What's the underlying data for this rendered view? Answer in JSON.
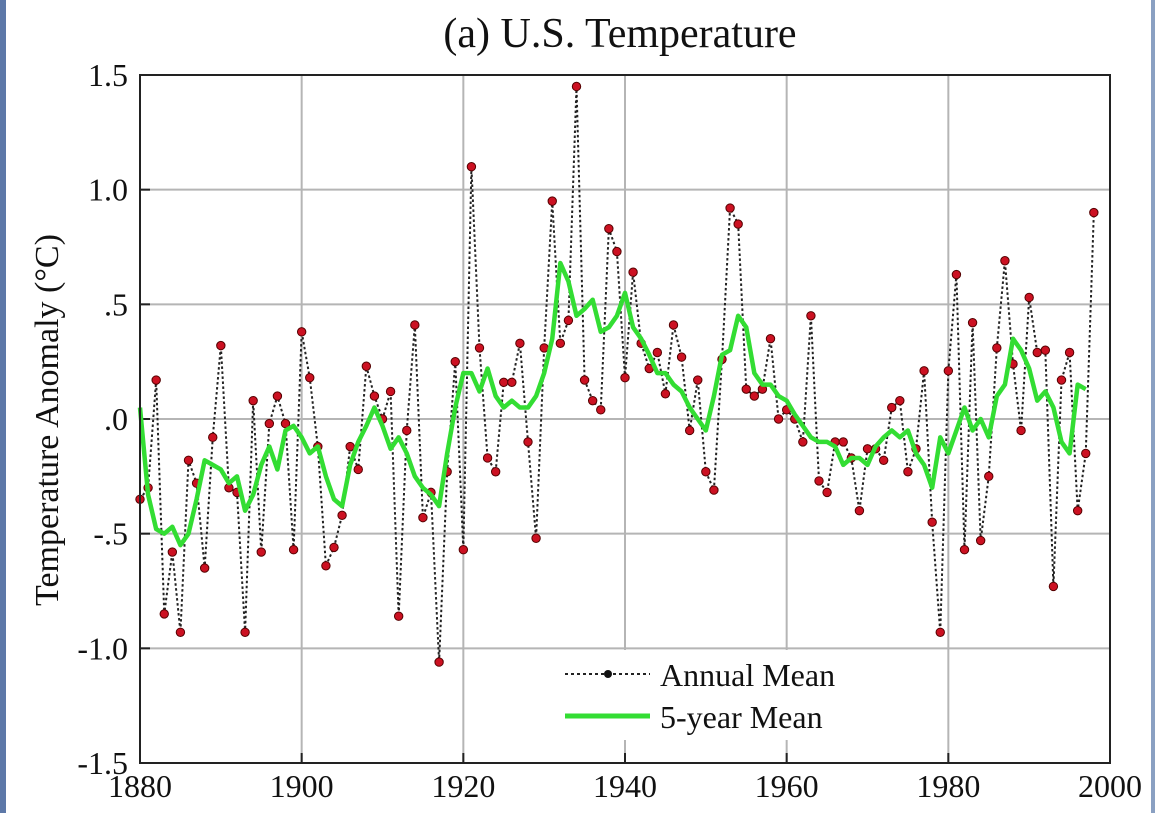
{
  "chart_data": {
    "type": "line",
    "title": "(a)  U.S. Temperature",
    "xlabel": "",
    "ylabel": "Temperature Anomaly (°C)",
    "xlim": [
      1880,
      2000
    ],
    "ylim": [
      -1.5,
      1.5
    ],
    "x_ticks": [
      1880,
      1900,
      1920,
      1940,
      1960,
      1980,
      2000
    ],
    "x_tick_labels": [
      "1880",
      "1900",
      "1920",
      "1940",
      "1960",
      "1980",
      "2000"
    ],
    "y_ticks": [
      1.5,
      1.0,
      0.5,
      0.0,
      -0.5,
      -1.0,
      -1.5
    ],
    "y_tick_labels": [
      "1.5",
      "1.0",
      ".5",
      ".0",
      "-.5",
      "-1.0",
      "-1.5"
    ],
    "grid": true,
    "legend_position": "bottom-right",
    "series": [
      {
        "name": "Annual Mean",
        "style": "dotted-with-markers",
        "color": "#222222",
        "marker_color": "#cc1122",
        "x": [
          1880,
          1881,
          1882,
          1883,
          1884,
          1885,
          1886,
          1887,
          1888,
          1889,
          1890,
          1891,
          1892,
          1893,
          1894,
          1895,
          1896,
          1897,
          1898,
          1899,
          1900,
          1901,
          1902,
          1903,
          1904,
          1905,
          1906,
          1907,
          1908,
          1909,
          1910,
          1911,
          1912,
          1913,
          1914,
          1915,
          1916,
          1917,
          1918,
          1919,
          1920,
          1921,
          1922,
          1923,
          1924,
          1925,
          1926,
          1927,
          1928,
          1929,
          1930,
          1931,
          1932,
          1933,
          1934,
          1935,
          1936,
          1937,
          1938,
          1939,
          1940,
          1941,
          1942,
          1943,
          1944,
          1945,
          1946,
          1947,
          1948,
          1949,
          1950,
          1951,
          1952,
          1953,
          1954,
          1955,
          1956,
          1957,
          1958,
          1959,
          1960,
          1961,
          1962,
          1963,
          1964,
          1965,
          1966,
          1967,
          1968,
          1969,
          1970,
          1971,
          1972,
          1973,
          1974,
          1975,
          1976,
          1977,
          1978,
          1979,
          1980,
          1981,
          1982,
          1983,
          1984,
          1985,
          1986,
          1987,
          1988,
          1989,
          1990,
          1991,
          1992,
          1993,
          1994,
          1995,
          1996,
          1997,
          1998
        ],
        "values": [
          -0.35,
          -0.3,
          0.17,
          -0.85,
          -0.58,
          -0.93,
          -0.18,
          -0.28,
          -0.65,
          -0.08,
          0.32,
          -0.3,
          -0.32,
          -0.93,
          0.08,
          -0.58,
          -0.02,
          0.1,
          -0.02,
          -0.57,
          0.38,
          0.18,
          -0.12,
          -0.64,
          -0.56,
          -0.42,
          -0.12,
          -0.22,
          0.23,
          0.1,
          0.0,
          0.12,
          -0.86,
          -0.05,
          0.41,
          -0.43,
          -0.32,
          -1.06,
          -0.23,
          0.25,
          -0.57,
          1.1,
          0.31,
          -0.17,
          -0.23,
          0.16,
          0.16,
          0.33,
          -0.1,
          -0.52,
          0.31,
          0.95,
          0.33,
          0.43,
          1.45,
          0.17,
          0.08,
          0.04,
          0.83,
          0.73,
          0.18,
          0.64,
          0.33,
          0.22,
          0.29,
          0.11,
          0.41,
          0.27,
          -0.05,
          0.17,
          -0.23,
          -0.31,
          0.26,
          0.92,
          0.85,
          0.13,
          0.1,
          0.13,
          0.35,
          0.0,
          0.04,
          0.0,
          -0.1,
          0.45,
          -0.27,
          -0.32,
          -0.1,
          -0.1,
          -0.17,
          -0.4,
          -0.13,
          -0.13,
          -0.18,
          0.05,
          0.08,
          -0.23,
          -0.13,
          0.21,
          -0.45,
          -0.93,
          0.21,
          0.63,
          -0.57,
          0.42,
          -0.53,
          -0.25,
          0.31,
          0.69,
          0.24,
          -0.05,
          0.53,
          0.29,
          0.3,
          -0.73,
          0.17,
          0.29,
          -0.4,
          -0.15,
          0.9
        ]
      },
      {
        "name": "5-year Mean",
        "style": "solid",
        "color": "#33dd33",
        "x": [
          1880,
          1881,
          1882,
          1883,
          1884,
          1885,
          1886,
          1887,
          1888,
          1889,
          1890,
          1891,
          1892,
          1893,
          1894,
          1895,
          1896,
          1897,
          1898,
          1899,
          1900,
          1901,
          1902,
          1903,
          1904,
          1905,
          1906,
          1907,
          1908,
          1909,
          1910,
          1911,
          1912,
          1913,
          1914,
          1915,
          1916,
          1917,
          1918,
          1919,
          1920,
          1921,
          1922,
          1923,
          1924,
          1925,
          1926,
          1927,
          1928,
          1929,
          1930,
          1931,
          1932,
          1933,
          1934,
          1935,
          1936,
          1937,
          1938,
          1939,
          1940,
          1941,
          1942,
          1943,
          1944,
          1945,
          1946,
          1947,
          1948,
          1949,
          1950,
          1951,
          1952,
          1953,
          1954,
          1955,
          1956,
          1957,
          1958,
          1959,
          1960,
          1961,
          1962,
          1963,
          1964,
          1965,
          1966,
          1967,
          1968,
          1969,
          1970,
          1971,
          1972,
          1973,
          1974,
          1975,
          1976,
          1977,
          1978,
          1979,
          1980,
          1981,
          1982,
          1983,
          1984,
          1985,
          1986,
          1987,
          1988,
          1989,
          1990,
          1991,
          1992,
          1993,
          1994,
          1995,
          1996,
          1997
        ],
        "values": [
          0.05,
          -0.33,
          -0.48,
          -0.5,
          -0.47,
          -0.55,
          -0.5,
          -0.35,
          -0.18,
          -0.2,
          -0.22,
          -0.28,
          -0.25,
          -0.4,
          -0.33,
          -0.2,
          -0.12,
          -0.22,
          -0.05,
          -0.03,
          -0.08,
          -0.15,
          -0.12,
          -0.25,
          -0.35,
          -0.38,
          -0.2,
          -0.1,
          -0.03,
          0.05,
          -0.03,
          -0.13,
          -0.08,
          -0.15,
          -0.25,
          -0.3,
          -0.33,
          -0.38,
          -0.15,
          0.05,
          0.2,
          0.2,
          0.12,
          0.22,
          0.1,
          0.05,
          0.08,
          0.05,
          0.05,
          0.1,
          0.2,
          0.35,
          0.68,
          0.6,
          0.45,
          0.48,
          0.52,
          0.38,
          0.4,
          0.45,
          0.55,
          0.4,
          0.35,
          0.28,
          0.2,
          0.2,
          0.15,
          0.12,
          0.05,
          0.0,
          -0.05,
          0.1,
          0.28,
          0.3,
          0.45,
          0.4,
          0.2,
          0.15,
          0.15,
          0.1,
          0.08,
          0.02,
          -0.03,
          -0.08,
          -0.1,
          -0.1,
          -0.12,
          -0.2,
          -0.17,
          -0.17,
          -0.2,
          -0.12,
          -0.08,
          -0.05,
          -0.08,
          -0.05,
          -0.15,
          -0.2,
          -0.3,
          -0.08,
          -0.15,
          -0.05,
          0.05,
          -0.05,
          0.0,
          -0.08,
          0.1,
          0.15,
          0.35,
          0.3,
          0.22,
          0.08,
          0.12,
          0.05,
          -0.1,
          -0.15,
          0.15,
          0.13
        ]
      }
    ]
  }
}
